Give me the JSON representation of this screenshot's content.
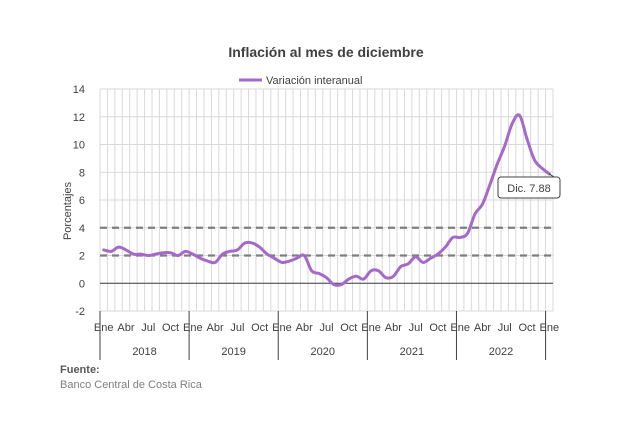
{
  "chart_data": {
    "type": "line",
    "title": "Inflación al mes de diciembre",
    "ylabel": "Porcentajes",
    "ylim": [
      -2,
      14
    ],
    "yticks": [
      -2,
      0,
      2,
      4,
      6,
      8,
      10,
      12,
      14
    ],
    "month_labels": [
      "Ene",
      "Abr",
      "Jul",
      "Oct"
    ],
    "years": [
      "2018",
      "2019",
      "2020",
      "2021",
      "2022"
    ],
    "grid": true,
    "legend_position": "top",
    "reference_lines": [
      2,
      4
    ],
    "series": [
      {
        "name": "Variación interanual",
        "color": "#a569c9",
        "values": [
          2.4,
          2.3,
          2.6,
          2.4,
          2.1,
          2.1,
          2.0,
          2.1,
          2.2,
          2.2,
          2.0,
          2.3,
          2.1,
          1.8,
          1.6,
          1.5,
          2.1,
          2.3,
          2.4,
          2.9,
          2.9,
          2.6,
          2.1,
          1.8,
          1.5,
          1.6,
          1.8,
          2.0,
          0.9,
          0.7,
          0.4,
          -0.1,
          -0.1,
          0.3,
          0.5,
          0.3,
          0.9,
          0.9,
          0.4,
          0.5,
          1.2,
          1.4,
          1.9,
          1.5,
          1.8,
          2.1,
          2.6,
          3.3,
          3.3,
          3.6,
          5.0,
          5.7,
          7.1,
          8.6,
          9.9,
          11.5,
          12.1,
          10.4,
          8.9,
          8.3,
          7.88
        ]
      }
    ],
    "annotations": [
      {
        "text": "Dic. 7.88",
        "point": "last"
      }
    ]
  },
  "source": {
    "label": "Fuente:",
    "text": "Banco Central de Costa Rica"
  }
}
